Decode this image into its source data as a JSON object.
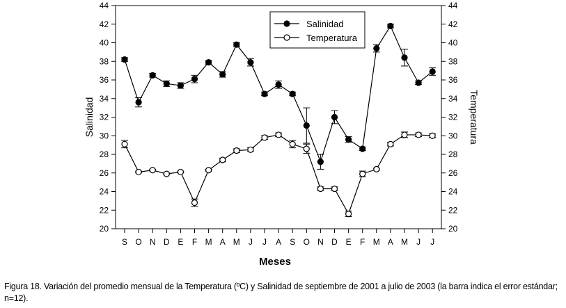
{
  "chart_data": {
    "type": "line",
    "categories": [
      "S",
      "O",
      "N",
      "D",
      "E",
      "F",
      "M",
      "A",
      "M",
      "J",
      "J",
      "A",
      "S",
      "O",
      "N",
      "D",
      "E",
      "F",
      "M",
      "A",
      "M",
      "J",
      "J"
    ],
    "series": [
      {
        "name": "Salinidad",
        "marker": "filled-circle",
        "values": [
          38.2,
          33.6,
          36.5,
          35.6,
          35.4,
          36.1,
          37.9,
          36.6,
          39.8,
          37.9,
          34.5,
          35.5,
          34.5,
          31.1,
          27.2,
          32.0,
          29.6,
          28.6,
          39.4,
          41.8,
          38.4,
          35.7,
          36.9
        ],
        "errors": [
          0.2,
          0.5,
          0.2,
          0.3,
          0.3,
          0.4,
          0.2,
          0.3,
          0.2,
          0.4,
          0.2,
          0.4,
          0.2,
          1.9,
          0.8,
          0.7,
          0.3,
          0.2,
          0.4,
          0.2,
          0.9,
          0.2,
          0.4
        ]
      },
      {
        "name": "Temperatura",
        "marker": "open-circle",
        "values": [
          29.1,
          26.1,
          26.3,
          25.9,
          26.1,
          22.8,
          26.3,
          27.4,
          28.4,
          28.5,
          29.8,
          30.1,
          29.1,
          28.6,
          24.3,
          24.3,
          21.6,
          25.9,
          26.4,
          29.1,
          30.1,
          30.1,
          30.0
        ],
        "errors": [
          0.4,
          0.1,
          0.1,
          0.1,
          0.1,
          0.4,
          0.1,
          0.2,
          0.2,
          0.2,
          0.2,
          0.2,
          0.4,
          0.5,
          0.2,
          0.2,
          0.3,
          0.3,
          0.1,
          0.2,
          0.3,
          0.2,
          0.2
        ]
      }
    ],
    "xlabel": "Meses",
    "ylabel_left": "Salinidad",
    "ylabel_right": "Temperatura",
    "ylim": [
      20,
      44
    ],
    "yticks": [
      20,
      22,
      24,
      26,
      28,
      30,
      32,
      34,
      36,
      38,
      40,
      42,
      44
    ],
    "grid": false,
    "legend_position": "top-center"
  },
  "caption": "Figura 18. Variación del promedio mensual de la Temperatura (ºC) y Salinidad de septiembre de 2001 a julio de 2003 (la barra indica el error estándar; n=12)."
}
